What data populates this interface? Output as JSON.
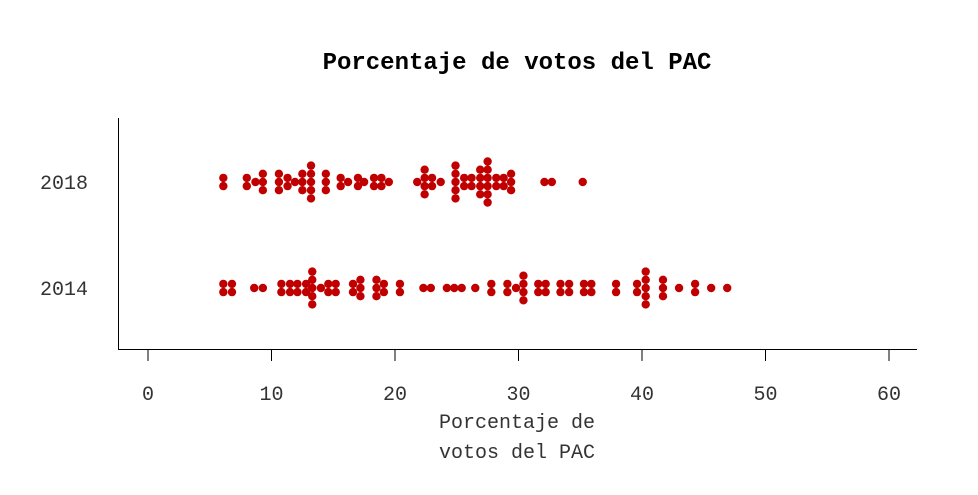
{
  "chart_data": {
    "type": "scatter",
    "subtype": "beeswarm",
    "title": "Porcentaje de votos del PAC",
    "xlabel_lines": [
      "Porcentaje de",
      "votos del PAC"
    ],
    "ylabel": "",
    "xlim": [
      -2.5,
      62.5
    ],
    "xticks": [
      0,
      10,
      20,
      30,
      40,
      50,
      60
    ],
    "categories": [
      "2014",
      "2018"
    ],
    "point_color": "#c00000",
    "grid": false,
    "series": [
      {
        "name": "2014",
        "values": [
          6.1,
          6.8,
          6.1,
          6.8,
          8.6,
          9.3,
          10.8,
          10.8,
          11.5,
          11.5,
          12.1,
          12.1,
          12.8,
          12.8,
          13.3,
          13.3,
          13.3,
          13.3,
          13.3,
          14.0,
          14.6,
          14.6,
          15.2,
          15.2,
          16.6,
          16.6,
          17.2,
          17.2,
          17.2,
          18.5,
          18.5,
          18.5,
          19.1,
          19.1,
          20.4,
          20.4,
          22.3,
          22.9,
          24.2,
          24.8,
          25.4,
          26.5,
          27.8,
          27.8,
          29.1,
          29.1,
          29.8,
          30.4,
          30.4,
          30.4,
          30.4,
          31.6,
          31.6,
          32.2,
          32.2,
          33.4,
          33.4,
          34.1,
          34.1,
          35.3,
          35.3,
          35.9,
          35.9,
          37.9,
          37.9,
          39.6,
          39.6,
          40.3,
          40.3,
          40.3,
          40.3,
          40.3,
          41.7,
          41.7,
          41.7,
          43.0,
          44.3,
          44.3,
          45.6,
          46.9
        ]
      },
      {
        "name": "2018",
        "values": [
          6.1,
          6.1,
          8.0,
          8.0,
          8.7,
          9.3,
          9.3,
          9.3,
          10.6,
          10.6,
          10.6,
          11.3,
          11.3,
          11.9,
          12.5,
          12.5,
          12.5,
          13.2,
          13.2,
          13.2,
          13.2,
          13.2,
          14.4,
          14.4,
          14.4,
          15.6,
          15.6,
          16.2,
          17.0,
          17.0,
          17.5,
          18.3,
          18.3,
          18.9,
          18.9,
          19.5,
          21.8,
          22.4,
          22.4,
          22.4,
          22.4,
          23.0,
          23.0,
          23.7,
          24.9,
          24.9,
          24.9,
          24.9,
          24.9,
          25.6,
          25.6,
          26.2,
          26.2,
          26.9,
          26.9,
          26.9,
          26.9,
          27.5,
          27.5,
          27.5,
          27.5,
          27.5,
          27.5,
          28.2,
          28.2,
          28.8,
          28.8,
          29.4,
          29.4,
          29.4,
          32.1,
          32.7,
          35.2
        ]
      }
    ]
  }
}
